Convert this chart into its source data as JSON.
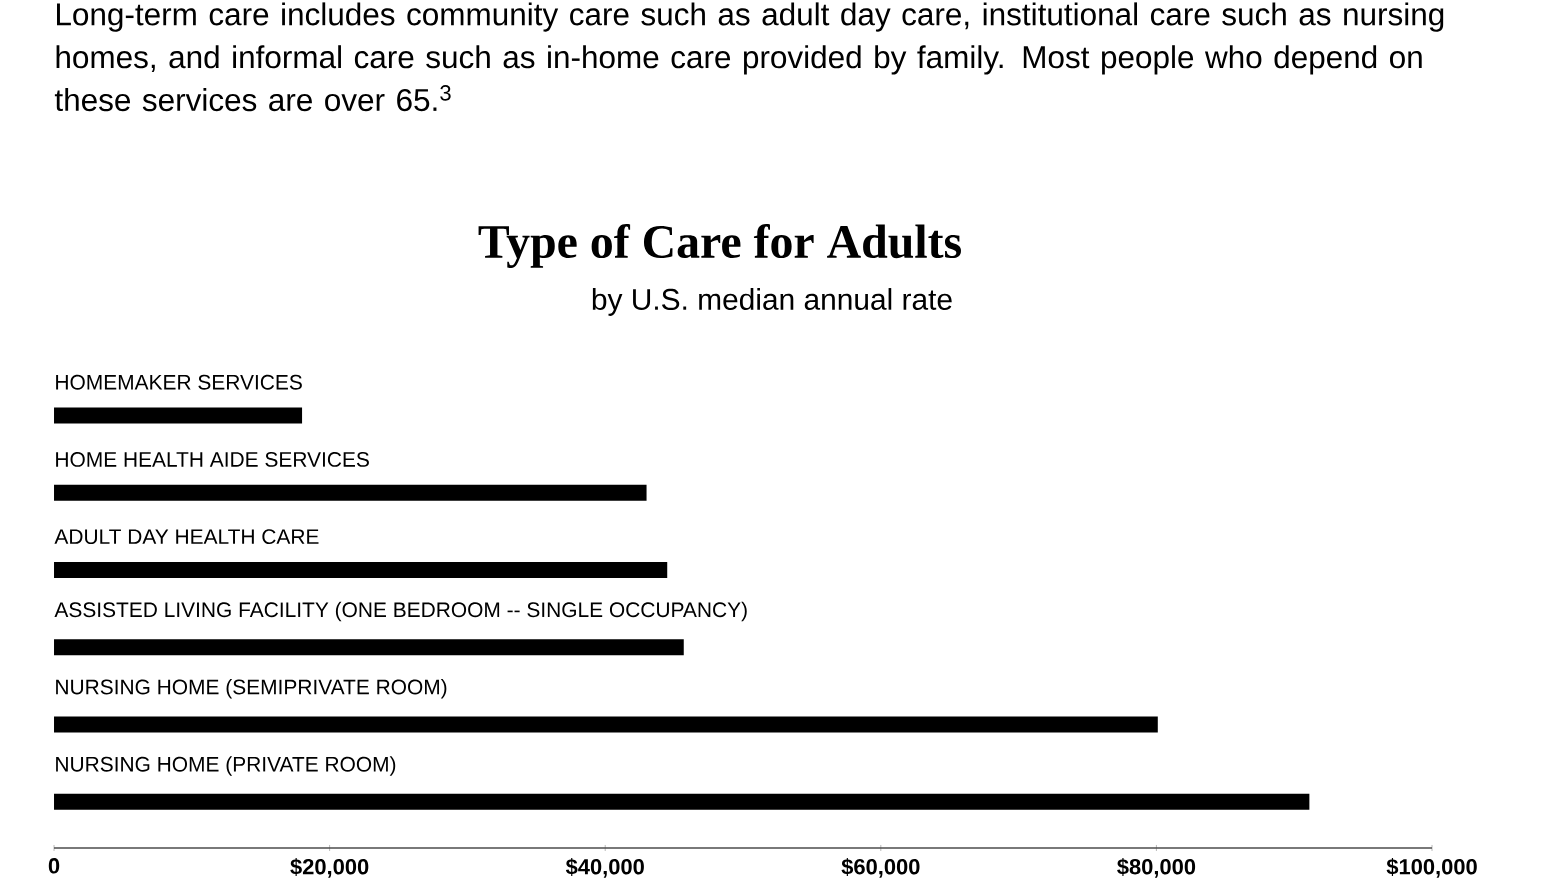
{
  "chart_data": {
    "type": "bar",
    "orientation": "horizontal",
    "title": "Type of Care for Adults",
    "subtitle": "by U.S. median annual rate",
    "annotations": [
      "Long-term care includes community care such as adult day care, institutional care such as nursing homes, and informal care such as in-home care provided by family. Most people who depend on these services are over 65.$^{3}$"
    ],
    "categories": [
      "HOMEMAKER SERVICES",
      "HOME HEALTH AIDE SERVICES",
      "ADULT DAY HEALTH CARE",
      "ASSISTED LIVING FACILITY (ONE BEDROOM -- SINGLE OCCUPANCY)",
      "NURSING HOME (SEMIPRIVATE ROOM)",
      "NURSING HOME (PRIVATE ROOM)"
    ],
    "values": [
      18000,
      43000,
      44500,
      45700,
      80100,
      91100
    ],
    "color": "#000000",
    "xlim": [
      0,
      100000
    ],
    "xticks": [
      0,
      {
        "value": 20000,
        "label": "$20,000"
      },
      {
        "value": 40000,
        "label": "$40,000"
      },
      {
        "value": 60000,
        "label": "$60,000"
      },
      {
        "value": 80000,
        "label": "$80,000"
      },
      {
        "value": 100000,
        "label": "$100,000"
      }
    ],
    "grid": false
  }
}
